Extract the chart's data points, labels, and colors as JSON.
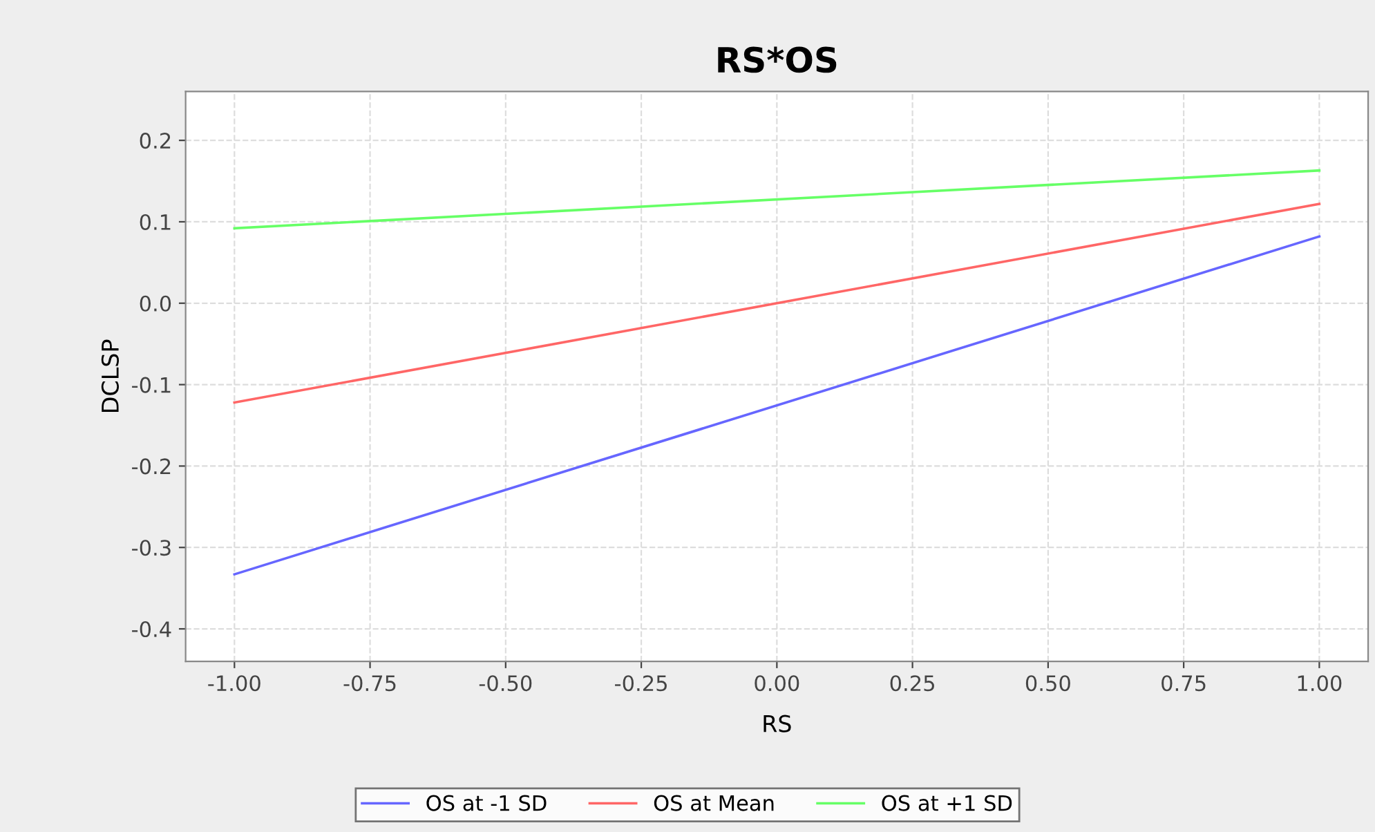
{
  "chart_data": {
    "type": "line",
    "title": "RS*OS",
    "xlabel": "RS",
    "ylabel": "DCLSP",
    "xlim": [
      -1.09,
      1.09
    ],
    "ylim": [
      -0.44,
      0.26
    ],
    "xticks": [
      {
        "value": -1,
        "label": "-1.00"
      },
      {
        "value": -0.75,
        "label": "-0.75"
      },
      {
        "value": -0.5,
        "label": "-0.50"
      },
      {
        "value": -0.25,
        "label": "-0.25"
      },
      {
        "value": 0,
        "label": "0.00"
      },
      {
        "value": 0.25,
        "label": "0.25"
      },
      {
        "value": 0.5,
        "label": "0.50"
      },
      {
        "value": 0.75,
        "label": "0.75"
      },
      {
        "value": 1,
        "label": "1.00"
      }
    ],
    "yticks": [
      {
        "value": -0.4,
        "label": "-0.4"
      },
      {
        "value": -0.3,
        "label": "-0.3"
      },
      {
        "value": -0.2,
        "label": "-0.2"
      },
      {
        "value": -0.1,
        "label": "-0.1"
      },
      {
        "value": 0,
        "label": "0.0"
      },
      {
        "value": 0.1,
        "label": "0.1"
      },
      {
        "value": 0.2,
        "label": "0.2"
      }
    ],
    "x": [
      -1,
      1
    ],
    "series": [
      {
        "name": "OS at -1 SD",
        "color": "#6666ff",
        "values": [
          -0.333,
          0.082
        ]
      },
      {
        "name": "OS at Mean",
        "color": "#ff6666",
        "values": [
          -0.122,
          0.122
        ]
      },
      {
        "name": "OS at +1 SD",
        "color": "#66ff66",
        "values": [
          0.092,
          0.163
        ]
      }
    ],
    "grid": true,
    "legend": "bottom",
    "line_style": "solid",
    "marker": "none"
  }
}
